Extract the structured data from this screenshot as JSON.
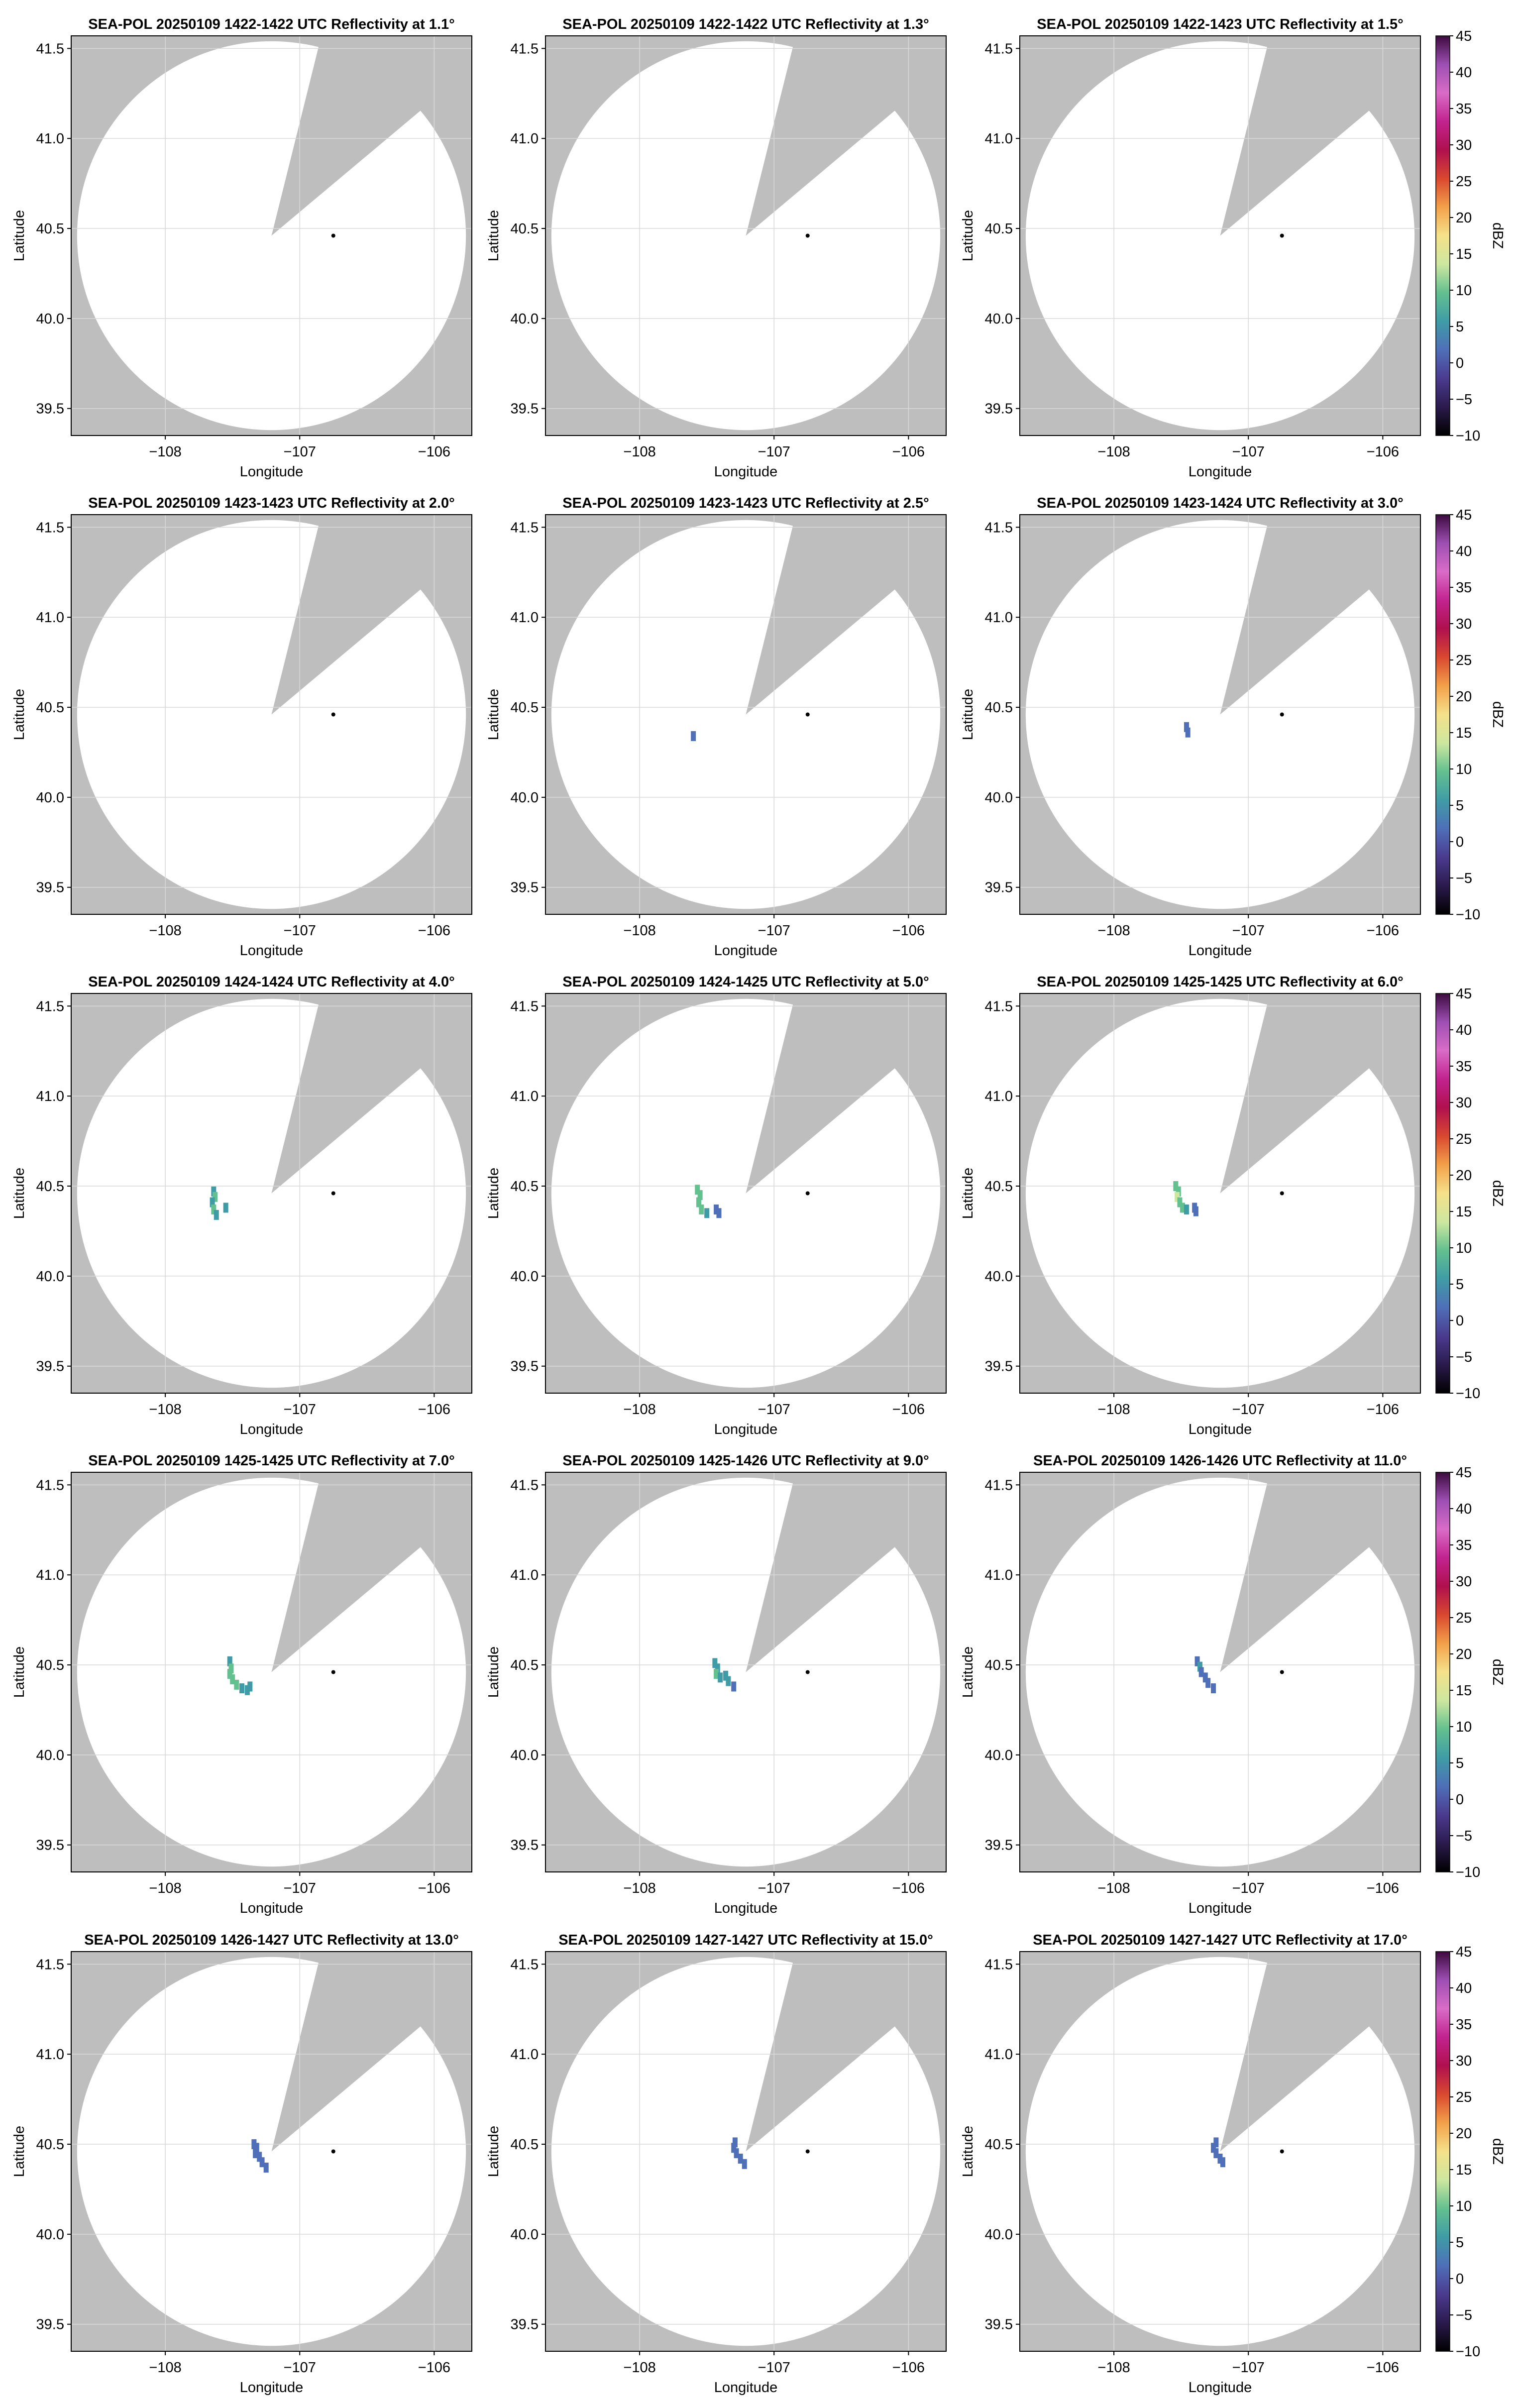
{
  "figure": {
    "background": "#ffffff",
    "outside_color": "#bebebe",
    "coverage_color": "#ffffff",
    "grid_color": "#d9d9d9"
  },
  "chart_data": {
    "type": "heatmap",
    "layout": "5x5 grid",
    "xlabel": "Longitude",
    "ylabel": "Latitude",
    "xlim": [
      -108.7,
      -105.72
    ],
    "ylim": [
      39.35,
      41.57
    ],
    "xticks": [
      -108,
      -107,
      -106
    ],
    "xtick_labels": [
      "−108",
      "−107",
      "−106"
    ],
    "yticks": [
      39.5,
      40.0,
      40.5,
      41.0,
      41.5
    ],
    "ytick_labels": [
      "39.5",
      "40.0",
      "40.5",
      "41.0",
      "41.5"
    ],
    "radar_center": [
      -106.75,
      40.46
    ],
    "coverage_center": [
      -107.21,
      40.46
    ],
    "coverage_radius_deg_lat": 1.08,
    "blocked_sector_deg": [
      14,
      50
    ],
    "colorbar": {
      "label": "dBZ",
      "min": -10,
      "max": 45,
      "ticks": [
        45,
        40,
        35,
        30,
        25,
        20,
        15,
        10,
        5,
        0,
        -5,
        -10
      ],
      "tick_labels": [
        "45",
        "40",
        "35",
        "30",
        "25",
        "20",
        "15",
        "10",
        "5",
        "0",
        "−5",
        "−10"
      ],
      "colors": [
        "#000000",
        "#2b1a4d",
        "#4b3b8f",
        "#4f6fb8",
        "#3f9ca6",
        "#63c08f",
        "#cde7a0",
        "#f5e18a",
        "#f3a04a",
        "#d9482f",
        "#b0104e",
        "#c2238f",
        "#d96cc7",
        "#9d4fb3",
        "#3d0a3f"
      ]
    },
    "panels": [
      {
        "title": "SEA-POL 20250109 1422-1422 UTC Reflectivity at 1.1°",
        "echoes": []
      },
      {
        "title": "SEA-POL 20250109 1422-1422 UTC Reflectivity at 1.3°",
        "echoes": []
      },
      {
        "title": "SEA-POL 20250109 1422-1423 UTC Reflectivity at 1.5°",
        "echoes": []
      },
      {
        "title": "SEA-POL 20250109 1423-1423 UTC Reflectivity at 2.0°",
        "echoes": []
      },
      {
        "title": "SEA-POL 20250109 1423-1423 UTC Reflectivity at 2.5°",
        "echoes": [
          {
            "lon": -107.6,
            "lat": 40.34,
            "dbz": 2
          }
        ]
      },
      {
        "title": "SEA-POL 20250109 1423-1424 UTC Reflectivity at 3.0°",
        "echoes": [
          {
            "lon": -107.45,
            "lat": 40.36,
            "dbz": 3
          },
          {
            "lon": -107.46,
            "lat": 40.39,
            "dbz": 2
          }
        ]
      },
      {
        "title": "SEA-POL 20250109 1424-1424 UTC Reflectivity at 4.0°",
        "echoes": [
          {
            "lon": -107.64,
            "lat": 40.47,
            "dbz": 8
          },
          {
            "lon": -107.63,
            "lat": 40.44,
            "dbz": 10
          },
          {
            "lon": -107.65,
            "lat": 40.41,
            "dbz": 8
          },
          {
            "lon": -107.64,
            "lat": 40.37,
            "dbz": 9
          },
          {
            "lon": -107.62,
            "lat": 40.34,
            "dbz": 7
          },
          {
            "lon": -107.55,
            "lat": 40.38,
            "dbz": 6
          }
        ]
      },
      {
        "title": "SEA-POL 20250109 1424-1425 UTC Reflectivity at 5.0°",
        "echoes": [
          {
            "lon": -107.57,
            "lat": 40.48,
            "dbz": 9
          },
          {
            "lon": -107.55,
            "lat": 40.45,
            "dbz": 11
          },
          {
            "lon": -107.56,
            "lat": 40.41,
            "dbz": 10
          },
          {
            "lon": -107.54,
            "lat": 40.37,
            "dbz": 9
          },
          {
            "lon": -107.5,
            "lat": 40.35,
            "dbz": 8
          },
          {
            "lon": -107.43,
            "lat": 40.37,
            "dbz": 4
          },
          {
            "lon": -107.41,
            "lat": 40.35,
            "dbz": 3
          }
        ]
      },
      {
        "title": "SEA-POL 20250109 1425-1425 UTC Reflectivity at 6.0°",
        "echoes": [
          {
            "lon": -107.54,
            "lat": 40.5,
            "dbz": 9
          },
          {
            "lon": -107.52,
            "lat": 40.47,
            "dbz": 11
          },
          {
            "lon": -107.53,
            "lat": 40.44,
            "dbz": 12
          },
          {
            "lon": -107.51,
            "lat": 40.41,
            "dbz": 10
          },
          {
            "lon": -107.49,
            "lat": 40.38,
            "dbz": 9
          },
          {
            "lon": -107.46,
            "lat": 40.37,
            "dbz": 7
          },
          {
            "lon": -107.4,
            "lat": 40.38,
            "dbz": 4
          },
          {
            "lon": -107.39,
            "lat": 40.36,
            "dbz": 3
          }
        ]
      },
      {
        "title": "SEA-POL 20250109 1425-1425 UTC Reflectivity at 7.0°",
        "echoes": [
          {
            "lon": -107.52,
            "lat": 40.52,
            "dbz": 6
          },
          {
            "lon": -107.51,
            "lat": 40.48,
            "dbz": 10
          },
          {
            "lon": -107.52,
            "lat": 40.45,
            "dbz": 11
          },
          {
            "lon": -107.5,
            "lat": 40.42,
            "dbz": 10
          },
          {
            "lon": -107.47,
            "lat": 40.39,
            "dbz": 9
          },
          {
            "lon": -107.43,
            "lat": 40.37,
            "dbz": 8
          },
          {
            "lon": -107.39,
            "lat": 40.36,
            "dbz": 6
          },
          {
            "lon": -107.37,
            "lat": 40.38,
            "dbz": 5
          }
        ]
      },
      {
        "title": "SEA-POL 20250109 1425-1426 UTC Reflectivity at 9.0°",
        "echoes": [
          {
            "lon": -107.44,
            "lat": 40.51,
            "dbz": 5
          },
          {
            "lon": -107.42,
            "lat": 40.48,
            "dbz": 8
          },
          {
            "lon": -107.43,
            "lat": 40.45,
            "dbz": 9
          },
          {
            "lon": -107.4,
            "lat": 40.43,
            "dbz": 7
          },
          {
            "lon": -107.36,
            "lat": 40.44,
            "dbz": 6
          },
          {
            "lon": -107.34,
            "lat": 40.41,
            "dbz": 5
          },
          {
            "lon": -107.3,
            "lat": 40.38,
            "dbz": 3
          }
        ]
      },
      {
        "title": "SEA-POL 20250109 1426-1426 UTC Reflectivity at 11.0°",
        "echoes": [
          {
            "lon": -107.38,
            "lat": 40.52,
            "dbz": 3
          },
          {
            "lon": -107.36,
            "lat": 40.49,
            "dbz": 5
          },
          {
            "lon": -107.35,
            "lat": 40.46,
            "dbz": 4
          },
          {
            "lon": -107.32,
            "lat": 40.43,
            "dbz": 4
          },
          {
            "lon": -107.3,
            "lat": 40.4,
            "dbz": 3
          },
          {
            "lon": -107.26,
            "lat": 40.37,
            "dbz": 2
          }
        ]
      },
      {
        "title": "SEA-POL 20250109 1426-1427 UTC Reflectivity at 13.0°",
        "echoes": [
          {
            "lon": -107.34,
            "lat": 40.5,
            "dbz": 3
          },
          {
            "lon": -107.32,
            "lat": 40.48,
            "dbz": 4
          },
          {
            "lon": -107.33,
            "lat": 40.45,
            "dbz": 4
          },
          {
            "lon": -107.3,
            "lat": 40.43,
            "dbz": 3
          },
          {
            "lon": -107.28,
            "lat": 40.4,
            "dbz": 3
          },
          {
            "lon": -107.25,
            "lat": 40.37,
            "dbz": 2
          }
        ]
      },
      {
        "title": "SEA-POL 20250109 1427-1427 UTC Reflectivity at 15.0°",
        "echoes": [
          {
            "lon": -107.29,
            "lat": 40.51,
            "dbz": 2
          },
          {
            "lon": -107.3,
            "lat": 40.48,
            "dbz": 3
          },
          {
            "lon": -107.28,
            "lat": 40.45,
            "dbz": 3
          },
          {
            "lon": -107.25,
            "lat": 40.42,
            "dbz": 2
          },
          {
            "lon": -107.22,
            "lat": 40.39,
            "dbz": 2
          }
        ]
      },
      {
        "title": "SEA-POL 20250109 1427-1427 UTC Reflectivity at 17.0°",
        "echoes": [
          {
            "lon": -107.24,
            "lat": 40.51,
            "dbz": 2
          },
          {
            "lon": -107.26,
            "lat": 40.48,
            "dbz": 3
          },
          {
            "lon": -107.24,
            "lat": 40.45,
            "dbz": 3
          },
          {
            "lon": -107.21,
            "lat": 40.42,
            "dbz": 2
          },
          {
            "lon": -107.19,
            "lat": 40.4,
            "dbz": 2
          }
        ]
      }
    ]
  }
}
